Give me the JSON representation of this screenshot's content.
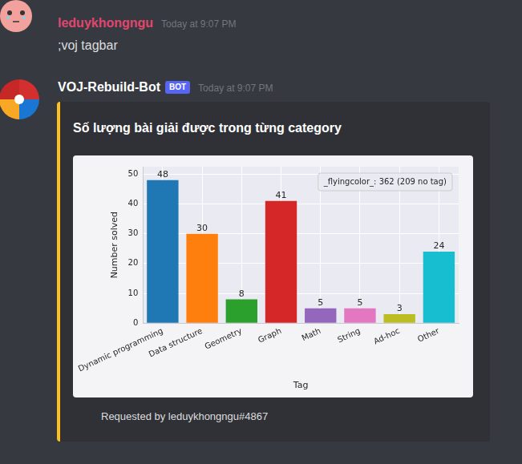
{
  "messages": [
    {
      "author": "leduykhongngu",
      "timestamp": "Today at 9:07 PM",
      "content": ";voj tagbar"
    },
    {
      "author": "VOJ-Rebuild-Bot",
      "badge": "BOT",
      "timestamp": "Today at 9:07 PM"
    }
  ],
  "embed": {
    "title": "Số lượng bài giải được trong từng category",
    "footer": "Requested by leduykhongngu#4867"
  },
  "chart_data": {
    "type": "bar",
    "categories": [
      "Dynamic programming",
      "Data structure",
      "Geometry",
      "Graph",
      "Math",
      "String",
      "Ad-hoc",
      "Other"
    ],
    "values": [
      48,
      30,
      8,
      41,
      5,
      5,
      3,
      24
    ],
    "colors": [
      "#1f77b4",
      "#ff7f0e",
      "#2ca02c",
      "#d62728",
      "#9467bd",
      "#e377c2",
      "#bcbd22",
      "#17becf"
    ],
    "x_label": "Tag",
    "y_label": "Number solved",
    "ylim": [
      0,
      52.5
    ],
    "yticks": [
      0,
      10,
      20,
      30,
      40,
      50
    ],
    "grid": true,
    "data_labels": true,
    "annotation": "_flyingcolor_: 362 (209 no tag)"
  }
}
